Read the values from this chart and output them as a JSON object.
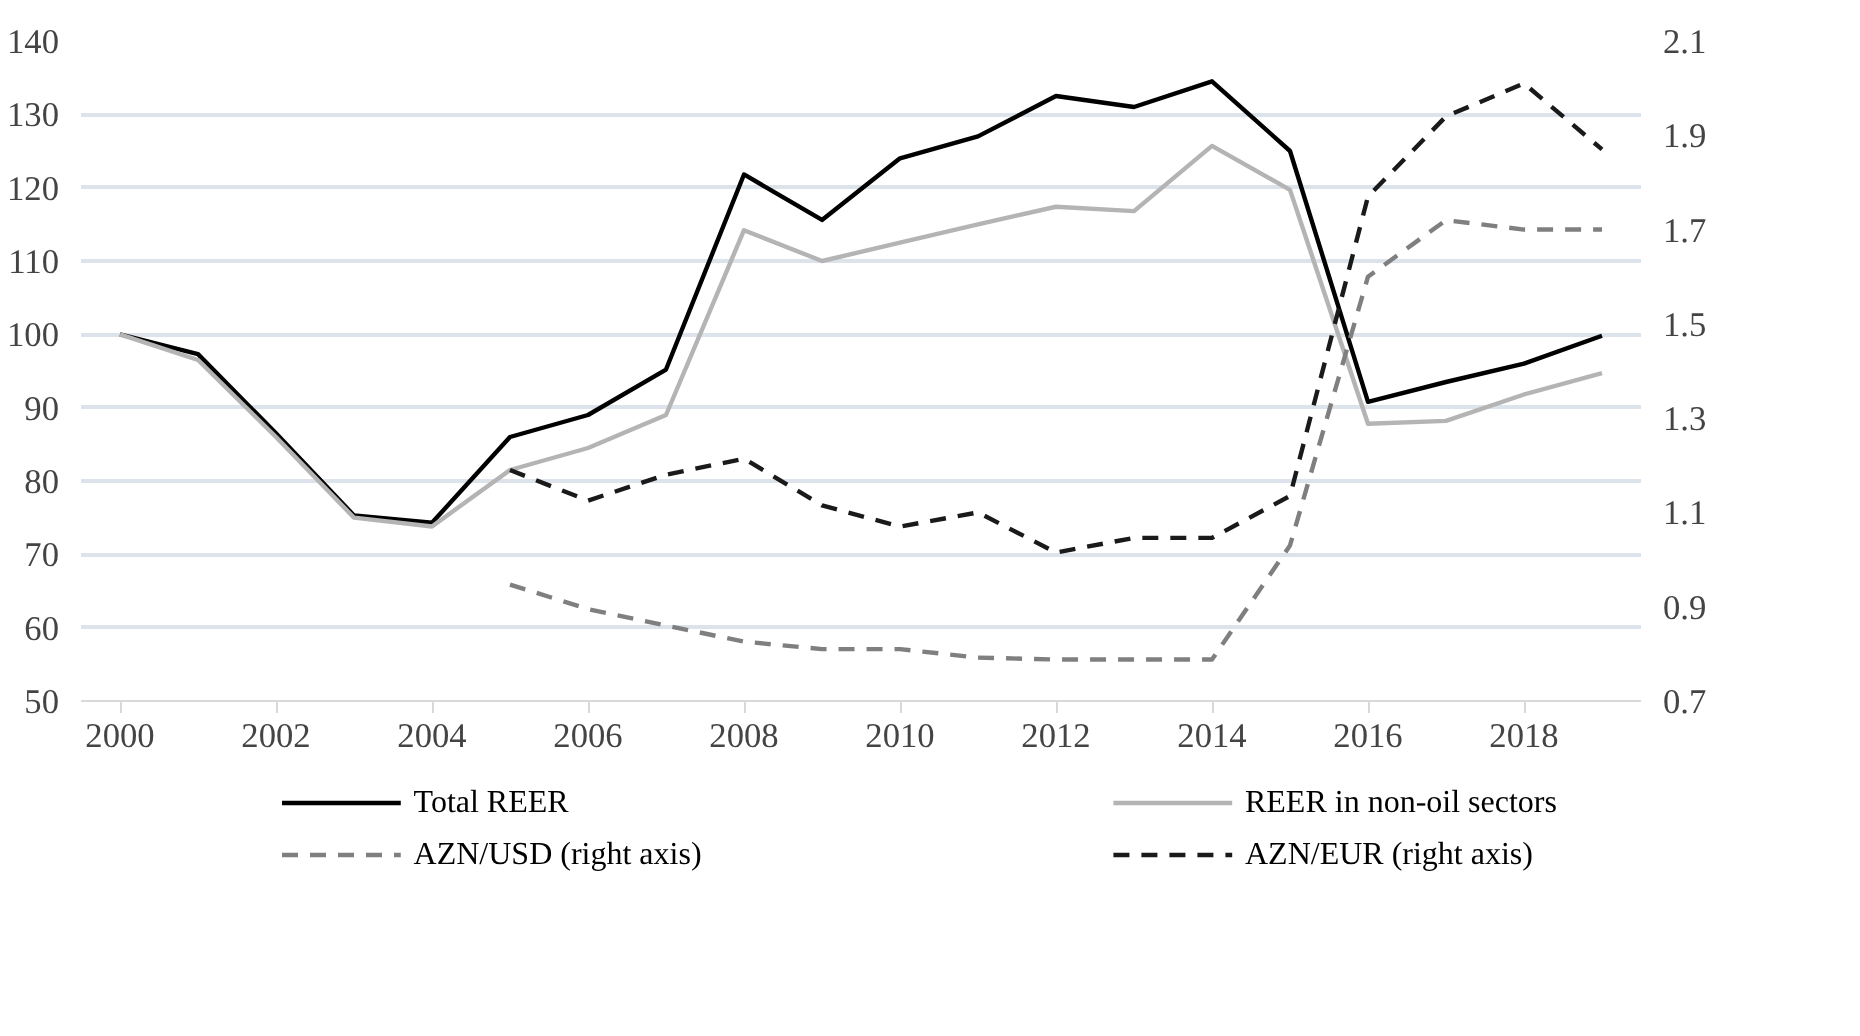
{
  "chart_data": {
    "type": "line",
    "x": [
      2000,
      2001,
      2002,
      2003,
      2004,
      2005,
      2006,
      2007,
      2008,
      2009,
      2010,
      2011,
      2012,
      2013,
      2014,
      2015,
      2016,
      2017,
      2018,
      2019
    ],
    "xlim": [
      1999.5,
      2019.5
    ],
    "xticks": [
      2000,
      2002,
      2004,
      2006,
      2008,
      2010,
      2012,
      2014,
      2016,
      2018
    ],
    "ylim": [
      50,
      140
    ],
    "yticks": [
      50,
      60,
      70,
      80,
      90,
      100,
      110,
      120,
      130,
      140
    ],
    "y2lim": [
      0.7,
      2.1
    ],
    "y2ticks": [
      {
        "value": 0.7,
        "label": "0.7"
      },
      {
        "value": 0.9,
        "label": "0.9"
      },
      {
        "value": 1.1,
        "label": "1.1"
      },
      {
        "value": 1.3,
        "label": "1.3"
      },
      {
        "value": 1.5,
        "label": "1.5"
      },
      {
        "value": 1.7,
        "label": "1.7"
      },
      {
        "value": 1.9,
        "label": "1.9"
      },
      {
        "value": 2.1,
        "label": "2.1"
      }
    ],
    "grid": "y",
    "legend": "bottom",
    "series": [
      {
        "name": "Total REER",
        "color": "#000000",
        "line_style": "solid",
        "values": [
          100,
          97.3,
          86.5,
          75.3,
          74.3,
          86,
          89,
          95.2,
          121.8,
          115.6,
          124,
          127,
          132.5,
          131,
          134.5,
          125,
          90.8,
          93.5,
          96,
          99.8
        ]
      },
      {
        "name": "REER in non-oil sectors",
        "color": "#b4b4b4",
        "line_style": "solid",
        "values": [
          100,
          96.5,
          86,
          75,
          73.8,
          81.5,
          84.5,
          89,
          114.2,
          110,
          112.5,
          115,
          117.4,
          116.8,
          125.7,
          119.7,
          87.8,
          88.2,
          91.8,
          94.7
        ]
      },
      {
        "name": "AZN/USD (right axis)",
        "color": "#7f7f7f",
        "line_style": "dashed",
        "axis": "y2",
        "values": [
          null,
          null,
          null,
          null,
          null,
          0.947,
          0.895,
          0.86,
          0.826,
          0.81,
          0.81,
          0.792,
          0.788,
          0.788,
          0.788,
          1.03,
          1.6,
          1.72,
          1.7,
          1.7
        ]
      },
      {
        "name": "AZN/EUR (right axis)",
        "color": "#1a1a1a",
        "line_style": "dashed",
        "axis": "y2",
        "values": [
          null,
          null,
          null,
          null,
          null,
          1.19,
          1.125,
          1.18,
          1.214,
          1.115,
          1.07,
          1.1,
          1.015,
          1.046,
          1.046,
          1.135,
          1.77,
          1.94,
          2.01,
          1.87
        ]
      }
    ]
  }
}
